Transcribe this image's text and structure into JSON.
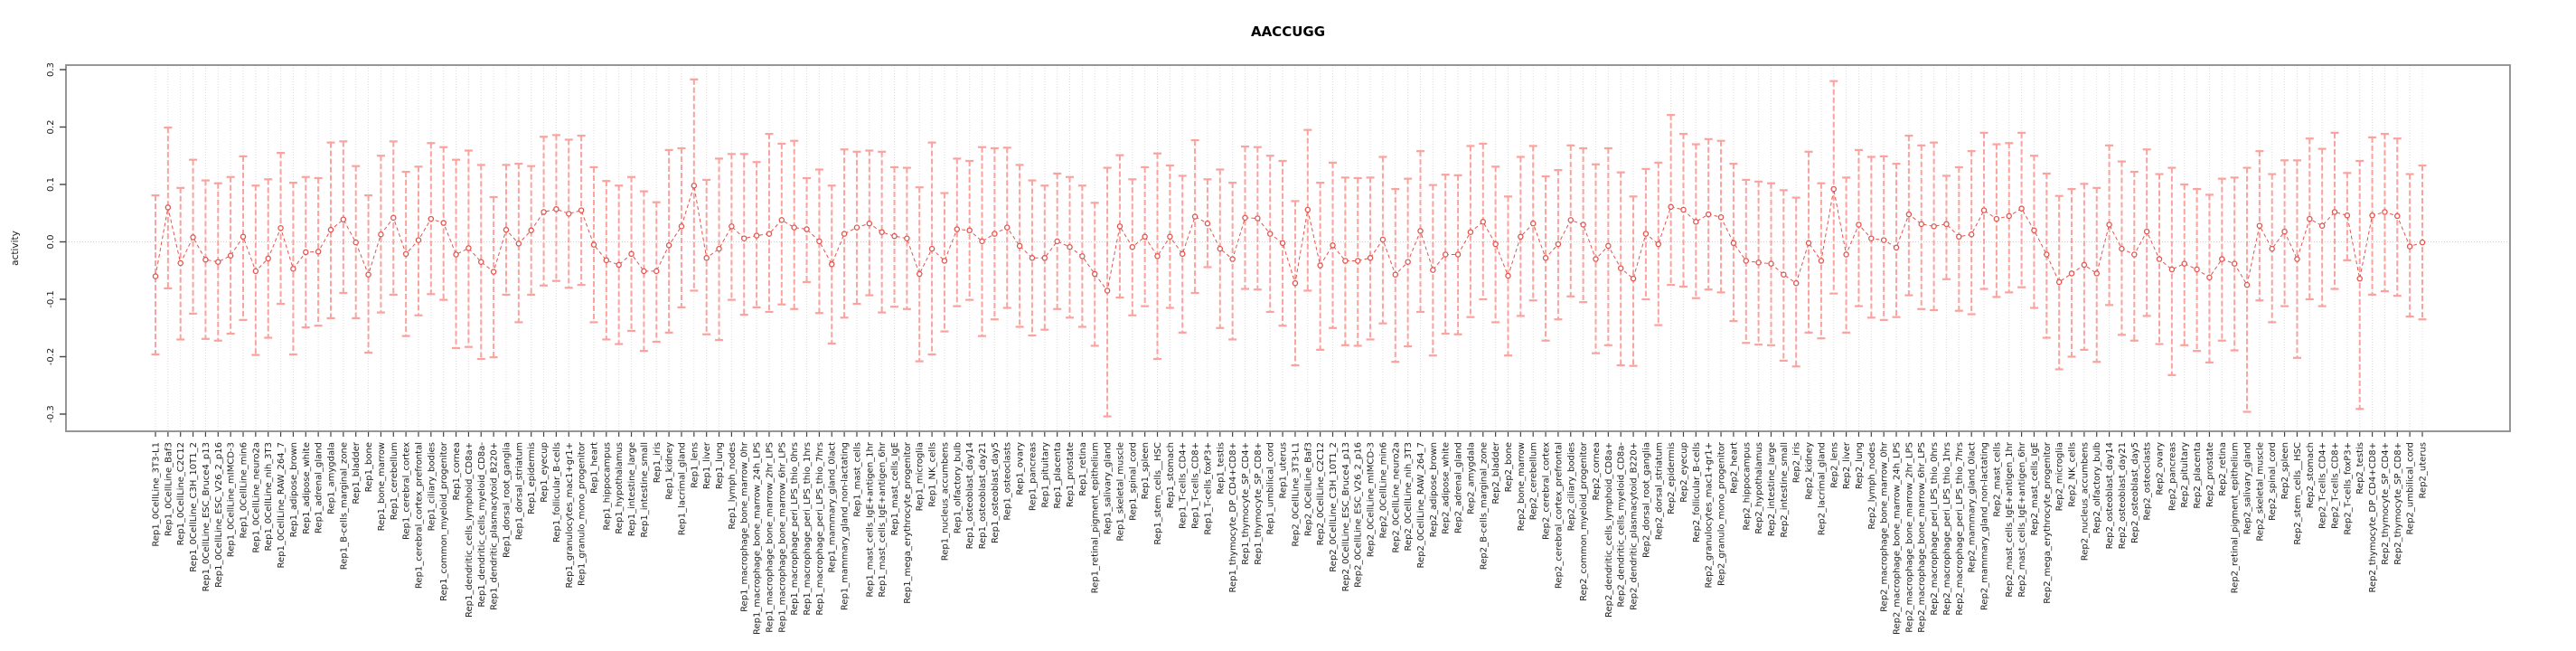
{
  "chart_data": {
    "type": "scatter",
    "title": "AACCUGG",
    "ylabel": "activity",
    "ylim": [
      -0.33,
      0.31
    ],
    "yticks": [
      0.3,
      0.2,
      0.1,
      0.0,
      -0.1,
      -0.2,
      -0.3
    ],
    "zero_line": 0,
    "grid": true,
    "legend_position": "none",
    "marker": "open-circle",
    "errorbar_style": "dashed-with-caps",
    "colors": {
      "point": "#e4544d",
      "line": "#e4544d",
      "errorbar": "#f9a29e",
      "grid": "#dcdcdc",
      "box": "#8a8a8a",
      "tick": "#444444",
      "text": "#1a1a1a"
    },
    "samples": [
      "0CellLine_3T3-L1",
      "0CellLine_Baf3",
      "0CellLine_C2C12",
      "0CellLine_C3H_10T1_2",
      "0CellLine_ESC_Bruce4_p13",
      "0CellLine_ESC_V26_2_p16",
      "0CellLine_mIMCD-3",
      "0CellLine_min6",
      "0CellLine_neuro2a",
      "0CellLine_nih_3T3",
      "0CellLine_RAW_264_7",
      "adipose_brown",
      "adipose_white",
      "adrenal_gland",
      "amygdala",
      "B-cells_marginal_zone",
      "bladder",
      "bone",
      "bone_marrow",
      "cerebellum",
      "cerebral_cortex",
      "cerebral_cortex_prefrontal",
      "ciliary_bodies",
      "common_myeloid_progenitor",
      "cornea",
      "dendritic_cells_lymphoid_CD8a+",
      "dendritic_cells_myeloid_CD8a-",
      "dendritic_plasmacytoid_B220+",
      "dorsal_root_ganglia",
      "dorsal_striatum",
      "epidermis",
      "eyecup",
      "follicular_B-cells",
      "granulocytes_mac1+gr1+",
      "granulo_mono_progenitor",
      "heart",
      "hippocampus",
      "hypothalamus",
      "intestine_large",
      "intestine_small",
      "iris",
      "kidney",
      "lacrimal_gland",
      "lens",
      "liver",
      "lung",
      "lymph_nodes",
      "macrophage_bone_marrow_0hr",
      "macrophage_bone_marrow_24h_LPS",
      "macrophage_bone_marrow_2hr_LPS",
      "macrophage_bone_marrow_6hr_LPS",
      "macrophage_peri_LPS_thio_0hrs",
      "macrophage_peri_LPS_thio_1hrs",
      "macrophage_peri_LPS_thio_7hrs",
      "mammary_gland_0lact",
      "mammary_gland_non-lactating",
      "mast_cells",
      "mast_cells_IgE+antigen_1hr",
      "mast_cells_IgE+antigen_6hr",
      "mast_cells_IgE",
      "mega_erythrocyte_progenitor",
      "microglia",
      "NK_cells",
      "nucleus_accumbens",
      "olfactory_bulb",
      "osteoblast_day14",
      "osteoblast_day21",
      "osteoblast_day5",
      "osteoclasts",
      "ovary",
      "pancreas",
      "pituitary",
      "placenta",
      "prostate",
      "retina",
      "retinal_pigment_epithelium",
      "salivary_gland",
      "skeletal_muscle",
      "spinal_cord",
      "spleen",
      "stem_cells__HSC",
      "stomach",
      "T-cells_CD4+",
      "T-cells_CD8+",
      "T-cells_foxP3+",
      "testis",
      "thymocyte_DP_CD4+CD8+",
      "thymocyte_SP_CD4+",
      "thymocyte_SP_CD8+",
      "umbilical_cord",
      "uterus"
    ],
    "series": [
      {
        "name": "Rep1",
        "points": [
          [
            -0.06,
            -0.196,
            0.081
          ],
          [
            0.06,
            -0.081,
            0.199
          ],
          [
            -0.037,
            -0.17,
            0.094
          ],
          [
            0.008,
            -0.125,
            0.143
          ],
          [
            -0.031,
            -0.169,
            0.107
          ],
          [
            -0.035,
            -0.172,
            0.102
          ],
          [
            -0.024,
            -0.16,
            0.113
          ],
          [
            0.009,
            -0.136,
            0.149
          ],
          [
            -0.051,
            -0.197,
            0.098
          ],
          [
            -0.029,
            -0.167,
            0.109
          ],
          [
            0.024,
            -0.108,
            0.155
          ],
          [
            -0.047,
            -0.196,
            0.103
          ],
          [
            -0.018,
            -0.149,
            0.113
          ],
          [
            -0.017,
            -0.146,
            0.111
          ],
          [
            0.021,
            -0.133,
            0.173
          ],
          [
            0.039,
            -0.089,
            0.175
          ],
          [
            -0.001,
            -0.133,
            0.132
          ],
          [
            -0.057,
            -0.193,
            0.081
          ],
          [
            0.013,
            -0.123,
            0.15
          ],
          [
            0.042,
            -0.092,
            0.175
          ],
          [
            -0.021,
            -0.164,
            0.122
          ],
          [
            0.003,
            -0.128,
            0.131
          ],
          [
            0.04,
            -0.091,
            0.172
          ],
          [
            0.033,
            -0.101,
            0.165
          ],
          [
            -0.022,
            -0.185,
            0.143
          ],
          [
            -0.011,
            -0.183,
            0.159
          ],
          [
            -0.035,
            -0.204,
            0.134
          ],
          [
            -0.052,
            -0.201,
            0.078
          ],
          [
            0.021,
            -0.092,
            0.134
          ],
          [
            -0.003,
            -0.14,
            0.136
          ],
          [
            0.02,
            -0.092,
            0.132
          ],
          [
            0.052,
            -0.076,
            0.183
          ],
          [
            0.057,
            -0.068,
            0.186
          ],
          [
            0.049,
            -0.08,
            0.178
          ],
          [
            0.055,
            -0.075,
            0.185
          ],
          [
            -0.005,
            -0.14,
            0.13
          ],
          [
            -0.032,
            -0.17,
            0.106
          ],
          [
            -0.04,
            -0.178,
            0.098
          ],
          [
            -0.021,
            -0.155,
            0.113
          ],
          [
            -0.051,
            -0.19,
            0.088
          ],
          [
            -0.051,
            -0.174,
            0.069
          ],
          [
            -0.006,
            -0.158,
            0.16
          ],
          [
            0.027,
            -0.114,
            0.163
          ],
          [
            0.098,
            -0.085,
            0.283
          ],
          [
            -0.028,
            -0.161,
            0.108
          ],
          [
            -0.012,
            -0.171,
            0.145
          ],
          [
            0.027,
            -0.101,
            0.153
          ],
          [
            0.006,
            -0.127,
            0.153
          ],
          [
            0.011,
            -0.114,
            0.139
          ],
          [
            0.014,
            -0.122,
            0.188
          ],
          [
            0.038,
            -0.109,
            0.171
          ],
          [
            0.025,
            -0.117,
            0.176
          ],
          [
            0.022,
            -0.07,
            0.111
          ],
          [
            0.001,
            -0.124,
            0.126
          ],
          [
            -0.039,
            -0.177,
            0.098
          ],
          [
            0.014,
            -0.132,
            0.161
          ],
          [
            0.025,
            -0.108,
            0.157
          ],
          [
            0.032,
            -0.093,
            0.159
          ],
          [
            0.017,
            -0.123,
            0.157
          ],
          [
            0.01,
            -0.113,
            0.13
          ],
          [
            0.006,
            -0.117,
            0.129
          ],
          [
            -0.056,
            -0.208,
            0.095
          ],
          [
            -0.012,
            -0.196,
            0.173
          ],
          [
            -0.033,
            -0.156,
            0.085
          ],
          [
            0.022,
            -0.112,
            0.145
          ],
          [
            0.02,
            -0.101,
            0.141
          ],
          [
            0.001,
            -0.164,
            0.165
          ],
          [
            0.014,
            -0.135,
            0.163
          ],
          [
            0.025,
            -0.115,
            0.164
          ],
          [
            -0.007,
            -0.148,
            0.134
          ],
          [
            -0.028,
            -0.163,
            0.107
          ],
          [
            -0.028,
            -0.153,
            0.098
          ],
          [
            0.001,
            -0.117,
            0.119
          ],
          [
            -0.009,
            -0.132,
            0.113
          ],
          [
            -0.025,
            -0.148,
            0.098
          ],
          [
            -0.056,
            -0.181,
            0.068
          ],
          [
            -0.085,
            -0.304,
            0.129
          ],
          [
            0.027,
            -0.097,
            0.151
          ],
          [
            -0.009,
            -0.128,
            0.109
          ],
          [
            0.009,
            -0.112,
            0.13
          ],
          [
            -0.025,
            -0.204,
            0.154
          ],
          [
            0.009,
            -0.115,
            0.133
          ],
          [
            -0.021,
            -0.158,
            0.115
          ],
          [
            0.044,
            -0.089,
            0.177
          ],
          [
            0.032,
            -0.044,
            0.109
          ],
          [
            -0.012,
            -0.15,
            0.126
          ],
          [
            -0.03,
            -0.17,
            0.103
          ],
          [
            0.042,
            -0.082,
            0.166
          ],
          [
            0.041,
            -0.083,
            0.165
          ],
          [
            0.014,
            -0.122,
            0.15
          ],
          [
            -0.002,
            -0.146,
            0.141
          ]
        ]
      },
      {
        "name": "Rep2",
        "points": [
          [
            -0.072,
            -0.215,
            0.071
          ],
          [
            0.056,
            -0.085,
            0.195
          ],
          [
            -0.041,
            -0.188,
            0.103
          ],
          [
            -0.006,
            -0.15,
            0.138
          ],
          [
            -0.033,
            -0.18,
            0.112
          ],
          [
            -0.033,
            -0.181,
            0.111
          ],
          [
            -0.028,
            -0.17,
            0.112
          ],
          [
            0.004,
            -0.142,
            0.148
          ],
          [
            -0.057,
            -0.209,
            0.092
          ],
          [
            -0.035,
            -0.182,
            0.11
          ],
          [
            0.019,
            -0.122,
            0.158
          ],
          [
            -0.049,
            -0.198,
            0.099
          ],
          [
            -0.022,
            -0.16,
            0.117
          ],
          [
            -0.022,
            -0.161,
            0.116
          ],
          [
            0.017,
            -0.131,
            0.167
          ],
          [
            0.035,
            -0.1,
            0.171
          ],
          [
            -0.004,
            -0.14,
            0.131
          ],
          [
            -0.059,
            -0.198,
            0.079
          ],
          [
            0.009,
            -0.129,
            0.148
          ],
          [
            0.032,
            -0.102,
            0.167
          ],
          [
            -0.028,
            -0.172,
            0.114
          ],
          [
            -0.004,
            -0.135,
            0.125
          ],
          [
            0.038,
            -0.095,
            0.168
          ],
          [
            0.03,
            -0.105,
            0.163
          ],
          [
            -0.03,
            -0.194,
            0.135
          ],
          [
            -0.007,
            -0.18,
            0.163
          ],
          [
            -0.046,
            -0.215,
            0.121
          ],
          [
            -0.064,
            -0.216,
            0.079
          ],
          [
            0.014,
            -0.1,
            0.127
          ],
          [
            -0.004,
            -0.145,
            0.138
          ],
          [
            0.061,
            -0.075,
            0.221
          ],
          [
            0.056,
            -0.078,
            0.188
          ],
          [
            0.035,
            -0.098,
            0.17
          ],
          [
            0.048,
            -0.083,
            0.179
          ],
          [
            0.043,
            -0.088,
            0.176
          ],
          [
            -0.002,
            -0.138,
            0.136
          ],
          [
            -0.033,
            -0.176,
            0.108
          ],
          [
            -0.036,
            -0.179,
            0.105
          ],
          [
            -0.038,
            -0.18,
            0.102
          ],
          [
            -0.057,
            -0.207,
            0.09
          ],
          [
            -0.072,
            -0.217,
            0.077
          ],
          [
            -0.002,
            -0.158,
            0.157
          ],
          [
            -0.033,
            -0.168,
            0.102
          ],
          [
            0.092,
            -0.09,
            0.28
          ],
          [
            -0.022,
            -0.158,
            0.112
          ],
          [
            0.03,
            -0.112,
            0.16
          ],
          [
            0.006,
            -0.132,
            0.148
          ],
          [
            0.003,
            -0.136,
            0.149
          ],
          [
            -0.01,
            -0.131,
            0.136
          ],
          [
            0.048,
            -0.093,
            0.185
          ],
          [
            0.031,
            -0.117,
            0.168
          ],
          [
            0.027,
            -0.119,
            0.173
          ],
          [
            0.031,
            -0.065,
            0.115
          ],
          [
            0.009,
            -0.12,
            0.13
          ],
          [
            0.013,
            -0.126,
            0.158
          ],
          [
            0.055,
            -0.082,
            0.19
          ],
          [
            0.04,
            -0.096,
            0.17
          ],
          [
            0.045,
            -0.088,
            0.172
          ],
          [
            0.058,
            -0.079,
            0.19
          ],
          [
            0.02,
            -0.115,
            0.15
          ],
          [
            -0.022,
            -0.167,
            0.119
          ],
          [
            -0.07,
            -0.222,
            0.08
          ],
          [
            -0.055,
            -0.2,
            0.092
          ],
          [
            -0.04,
            -0.188,
            0.101
          ],
          [
            -0.055,
            -0.209,
            0.094
          ],
          [
            0.03,
            -0.11,
            0.168
          ],
          [
            -0.012,
            -0.162,
            0.14
          ],
          [
            -0.022,
            -0.172,
            0.122
          ],
          [
            0.018,
            -0.129,
            0.161
          ],
          [
            -0.03,
            -0.178,
            0.118
          ],
          [
            -0.048,
            -0.232,
            0.129
          ],
          [
            -0.038,
            -0.18,
            0.1
          ],
          [
            -0.048,
            -0.19,
            0.092
          ],
          [
            -0.062,
            -0.21,
            0.082
          ],
          [
            -0.03,
            -0.172,
            0.11
          ],
          [
            -0.038,
            -0.189,
            0.112
          ],
          [
            -0.075,
            -0.296,
            0.129
          ],
          [
            0.028,
            -0.102,
            0.158
          ],
          [
            -0.012,
            -0.14,
            0.118
          ],
          [
            0.018,
            -0.112,
            0.142
          ],
          [
            -0.03,
            -0.202,
            0.142
          ],
          [
            0.04,
            -0.1,
            0.18
          ],
          [
            0.028,
            -0.112,
            0.162
          ],
          [
            0.052,
            -0.082,
            0.19
          ],
          [
            0.046,
            -0.032,
            0.12
          ],
          [
            -0.064,
            -0.291,
            0.141
          ],
          [
            0.046,
            -0.092,
            0.182
          ],
          [
            0.052,
            -0.086,
            0.188
          ],
          [
            0.045,
            -0.094,
            0.18
          ],
          [
            -0.008,
            -0.13,
            0.118
          ],
          [
            -0.001,
            -0.135,
            0.133
          ]
        ]
      }
    ]
  }
}
